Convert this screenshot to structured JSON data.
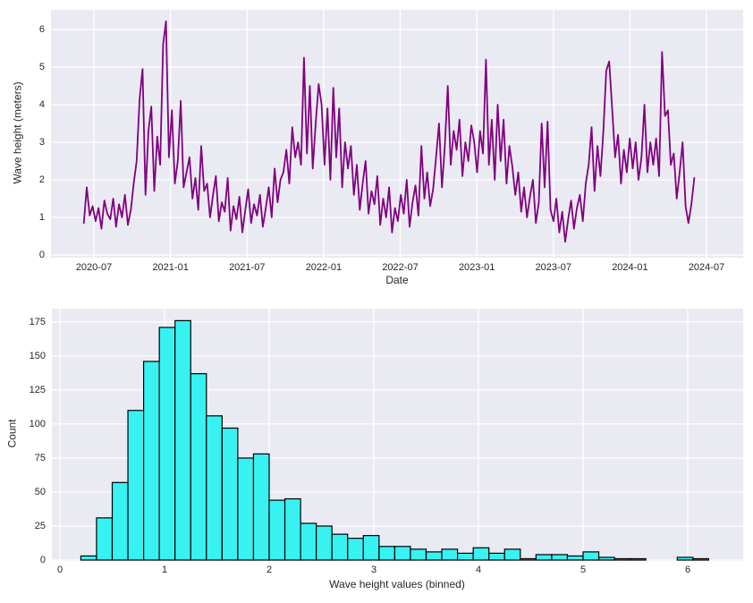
{
  "figure": {
    "background": "#ffffff",
    "axes_background": "#eaeaf2",
    "grid_color": "#ffffff",
    "text_color": "#262626"
  },
  "chart_data": [
    {
      "type": "line",
      "title": "",
      "xlabel": "Date",
      "ylabel": "Wave height (meters)",
      "line_color": "#800080",
      "grid": true,
      "legend": false,
      "x_tick_labels": [
        "2020-07",
        "2021-01",
        "2021-07",
        "2022-01",
        "2022-07",
        "2023-01",
        "2023-07",
        "2024-01",
        "2024-07"
      ],
      "y_ticks": [
        0,
        1,
        2,
        3,
        4,
        5,
        6
      ],
      "ylim": [
        0,
        6.5
      ],
      "series_name": "Wave height",
      "series_start_date": "2020-06-07",
      "series_step_days": 7,
      "values": [
        0.85,
        1.8,
        1.05,
        1.3,
        0.9,
        1.25,
        0.7,
        1.45,
        1.1,
        0.95,
        1.5,
        0.75,
        1.35,
        1.0,
        1.6,
        0.8,
        1.2,
        1.9,
        2.5,
        4.15,
        4.95,
        1.6,
        3.3,
        3.95,
        1.7,
        3.15,
        2.4,
        5.6,
        6.22,
        2.6,
        3.85,
        1.9,
        2.5,
        4.1,
        1.8,
        2.2,
        2.6,
        1.5,
        2.05,
        1.2,
        2.9,
        1.7,
        1.9,
        1.0,
        1.6,
        2.1,
        0.9,
        1.4,
        1.15,
        2.05,
        0.65,
        1.3,
        0.95,
        1.55,
        0.6,
        1.2,
        1.75,
        0.85,
        1.35,
        1.05,
        1.6,
        0.75,
        1.25,
        1.8,
        1.0,
        2.3,
        1.4,
        2.0,
        2.2,
        2.8,
        1.9,
        3.4,
        2.6,
        3.0,
        2.4,
        5.25,
        2.7,
        4.5,
        2.3,
        3.5,
        4.55,
        4.0,
        2.4,
        3.9,
        2.0,
        4.45,
        2.6,
        3.9,
        1.8,
        3.0,
        2.3,
        2.9,
        1.6,
        2.4,
        1.2,
        1.9,
        2.5,
        1.1,
        1.7,
        1.35,
        2.1,
        0.8,
        1.5,
        1.0,
        1.8,
        0.6,
        1.25,
        0.9,
        1.6,
        1.1,
        2.0,
        0.75,
        1.4,
        1.85,
        1.05,
        2.9,
        1.5,
        2.2,
        1.3,
        1.75,
        2.6,
        3.5,
        1.8,
        2.9,
        4.5,
        2.4,
        3.3,
        2.8,
        3.6,
        2.1,
        3.0,
        2.5,
        3.45,
        3.0,
        2.2,
        3.3,
        2.7,
        5.2,
        2.4,
        3.6,
        2.0,
        4.0,
        2.5,
        3.6,
        1.9,
        2.9,
        2.35,
        1.6,
        2.2,
        1.15,
        1.8,
        1.0,
        1.55,
        2.0,
        0.85,
        1.4,
        3.5,
        1.8,
        3.55,
        1.2,
        0.9,
        1.5,
        0.6,
        1.15,
        0.35,
        0.95,
        1.45,
        0.7,
        1.25,
        1.6,
        0.9,
        1.9,
        2.4,
        3.4,
        1.7,
        2.9,
        2.1,
        3.3,
        4.9,
        5.15,
        3.9,
        2.6,
        3.2,
        1.9,
        2.8,
        2.2,
        3.1,
        2.3,
        3.0,
        2.0,
        2.6,
        4.0,
        2.2,
        3.0,
        2.4,
        3.1,
        2.1,
        5.4,
        3.7,
        3.85,
        2.4,
        2.7,
        1.5,
        2.2,
        3.0,
        1.3,
        0.85,
        1.35,
        2.05
      ]
    },
    {
      "type": "bar",
      "title": "",
      "xlabel": "Wave height values (binned)",
      "ylabel": "Count",
      "bar_color": "#38f2f2",
      "bar_edge_color": "#000000",
      "grid": true,
      "legend": false,
      "x_ticks": [
        0,
        1,
        2,
        3,
        4,
        5,
        6
      ],
      "y_ticks": [
        0,
        25,
        50,
        75,
        100,
        125,
        150,
        175
      ],
      "xlim": [
        0,
        6.5
      ],
      "ylim": [
        0,
        184.8
      ],
      "bin_start": 0.2,
      "bin_width": 0.15,
      "counts": [
        3,
        31,
        57,
        110,
        146,
        171,
        176,
        137,
        106,
        97,
        75,
        78,
        44,
        45,
        27,
        25,
        19,
        16,
        18,
        10,
        10,
        8,
        6,
        8,
        5,
        9,
        5,
        8,
        1,
        4,
        4,
        3,
        6,
        2,
        1,
        1,
        0,
        0,
        2,
        1
      ]
    }
  ]
}
